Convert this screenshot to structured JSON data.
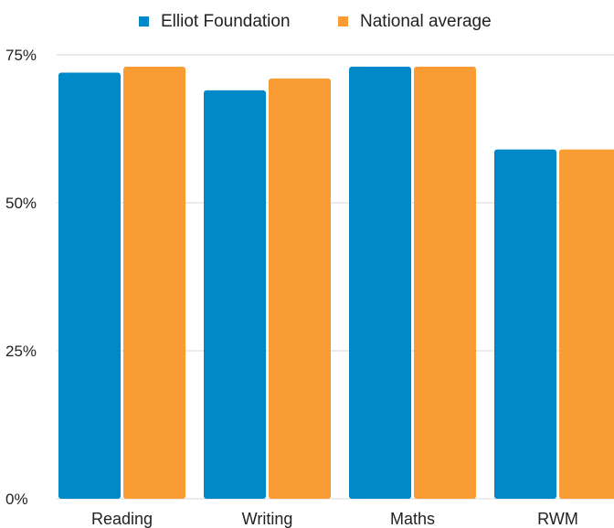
{
  "chart_data": {
    "type": "bar",
    "categories": [
      "Reading",
      "Writing",
      "Maths",
      "RWM"
    ],
    "series": [
      {
        "name": "Elliot Foundation",
        "color": "#0089c8",
        "values": [
          72,
          69,
          73,
          59
        ]
      },
      {
        "name": "National average",
        "color": "#f99c34",
        "values": [
          73,
          71,
          73,
          59
        ]
      }
    ],
    "yticks": [
      0,
      25,
      50,
      75
    ],
    "ytick_labels": [
      "0%",
      "25%",
      "50%",
      "75%"
    ],
    "ylim": [
      0,
      75
    ],
    "grid": true,
    "legend_position": "top-center",
    "title": "",
    "xlabel": "",
    "ylabel": ""
  }
}
